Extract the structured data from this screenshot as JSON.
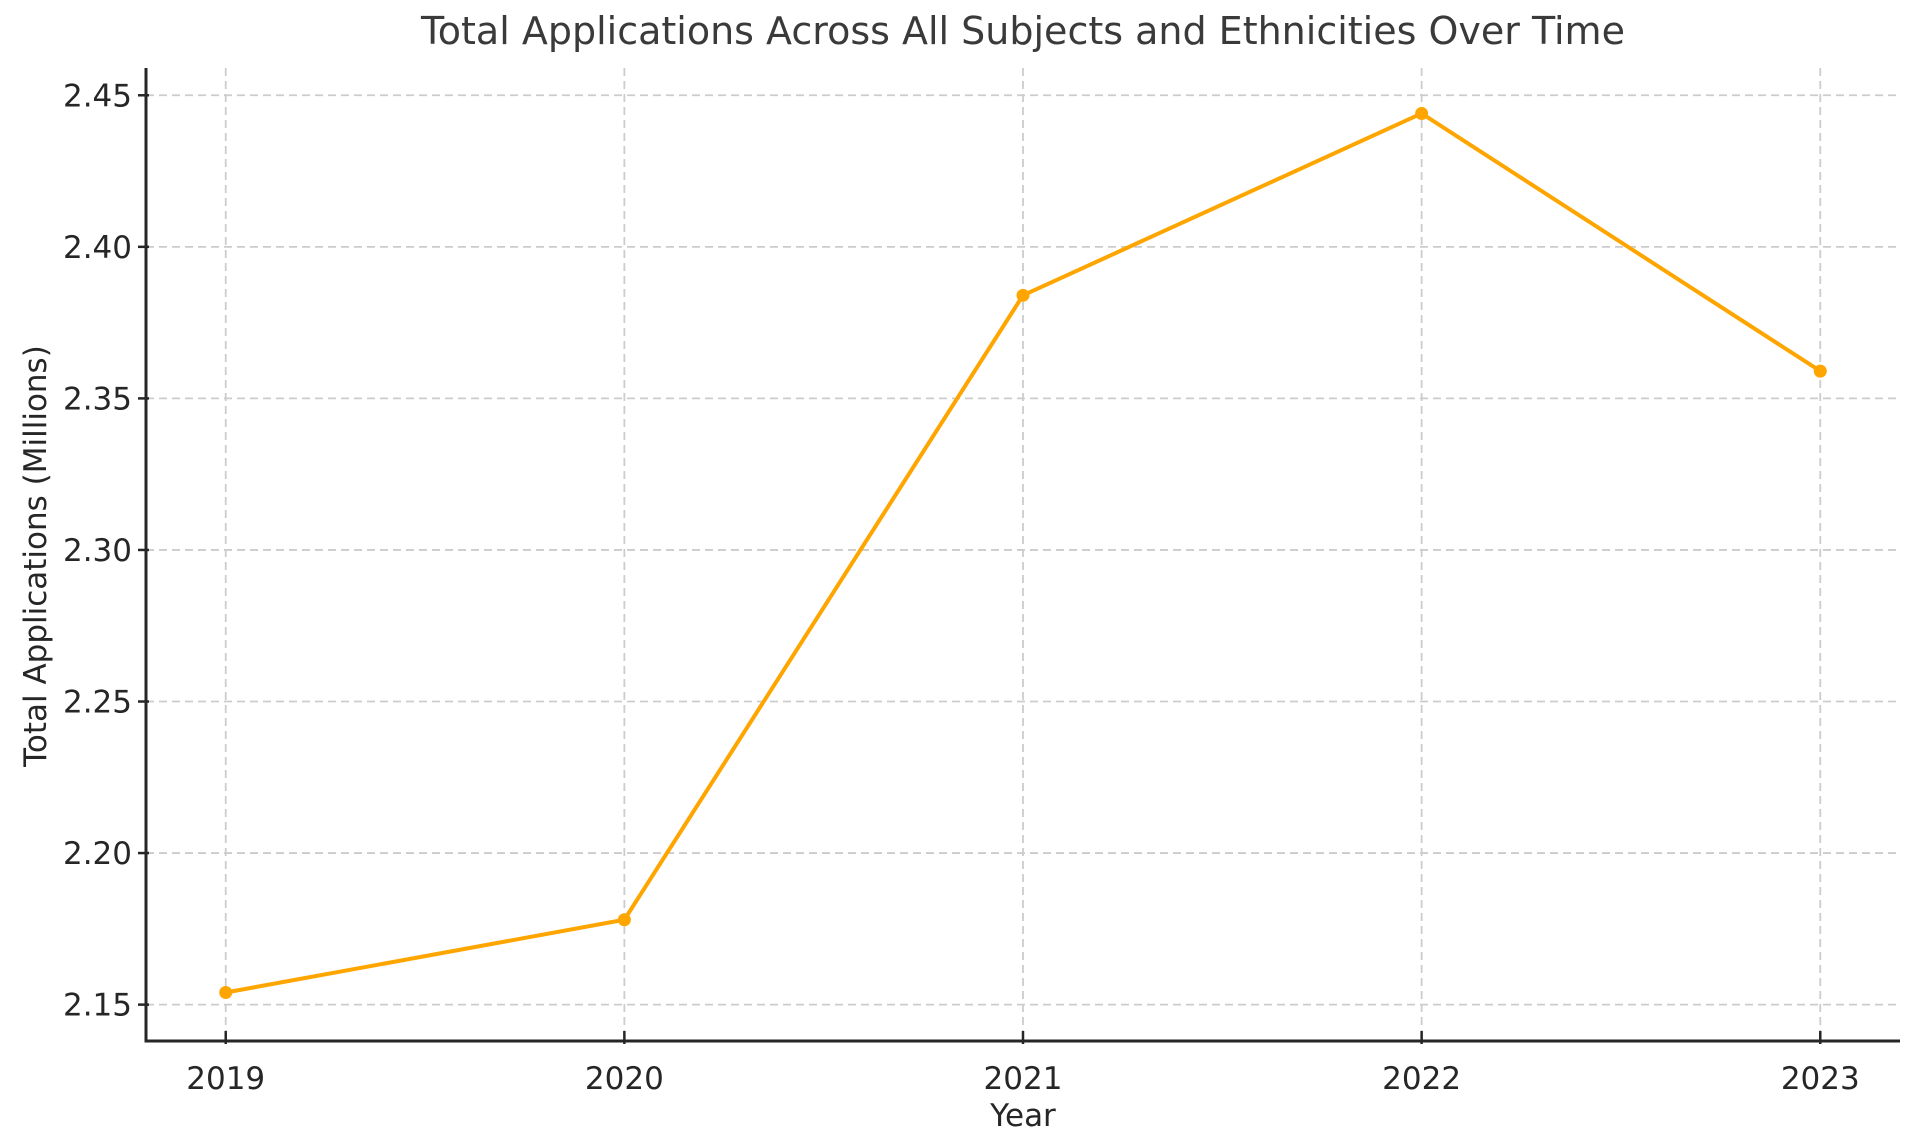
{
  "chart_data": {
    "type": "line",
    "title": "Total Applications Across All Subjects and Ethnicities Over Time",
    "xlabel": "Year",
    "ylabel": "Total Applications (Millions)",
    "x": [
      2019,
      2020,
      2021,
      2022,
      2023
    ],
    "y": [
      2.154,
      2.178,
      2.384,
      2.444,
      2.359
    ],
    "xlim": [
      2018.8,
      2023.2
    ],
    "ylim": [
      2.138,
      2.459
    ],
    "xticks": [
      2019,
      2020,
      2021,
      2022,
      2023
    ],
    "xtick_labels": [
      "2019",
      "2020",
      "2021",
      "2022",
      "2023"
    ],
    "yticks": [
      2.15,
      2.2,
      2.25,
      2.3,
      2.35,
      2.4,
      2.45
    ],
    "ytick_labels": [
      "2.15",
      "2.20",
      "2.25",
      "2.30",
      "2.35",
      "2.40",
      "2.45"
    ],
    "grid": true,
    "grid_style": "dashed",
    "legend": "none",
    "colors": {
      "line": "#FFA500",
      "marker": "#FFA500",
      "grid": "#cccccc",
      "spine": "#262626",
      "tick_label": "#262626",
      "title": "#3a3a3a",
      "background": "#ffffff"
    }
  }
}
